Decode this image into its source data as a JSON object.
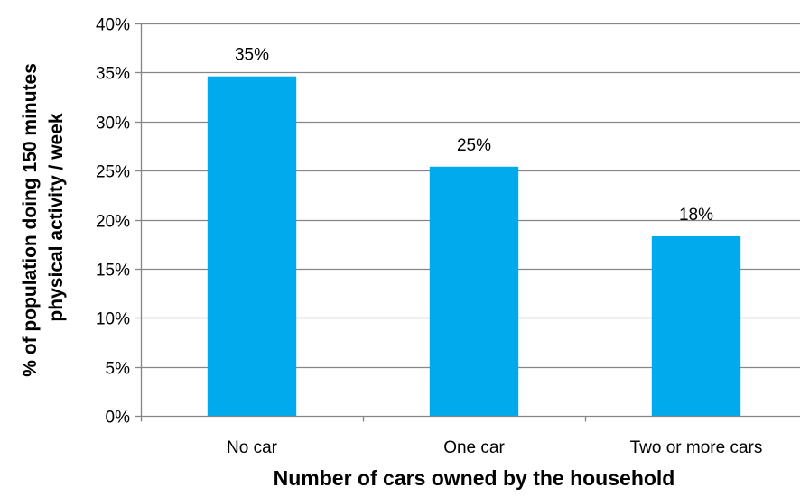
{
  "chart_data": {
    "type": "bar",
    "categories": [
      "No car",
      "One car",
      "Two or more cars"
    ],
    "values": [
      34.6,
      25.4,
      18.3
    ],
    "data_labels": [
      "35%",
      "25%",
      "18%"
    ],
    "ylabel": "% of population doing 150 minutes physical activity / week",
    "ylabel_lines": [
      "% of population doing 150 minutes",
      "physical activity / week"
    ],
    "xlabel": "Number of cars owned by the household",
    "ylim": [
      0,
      40
    ],
    "y_ticks": [
      0,
      5,
      10,
      15,
      20,
      25,
      30,
      35,
      40
    ],
    "y_tick_labels": [
      "0%",
      "5%",
      "10%",
      "15%",
      "20%",
      "25%",
      "30%",
      "35%",
      "40%"
    ],
    "grid": true,
    "bar_color": "#00AAEC",
    "grid_color": "#868686"
  }
}
